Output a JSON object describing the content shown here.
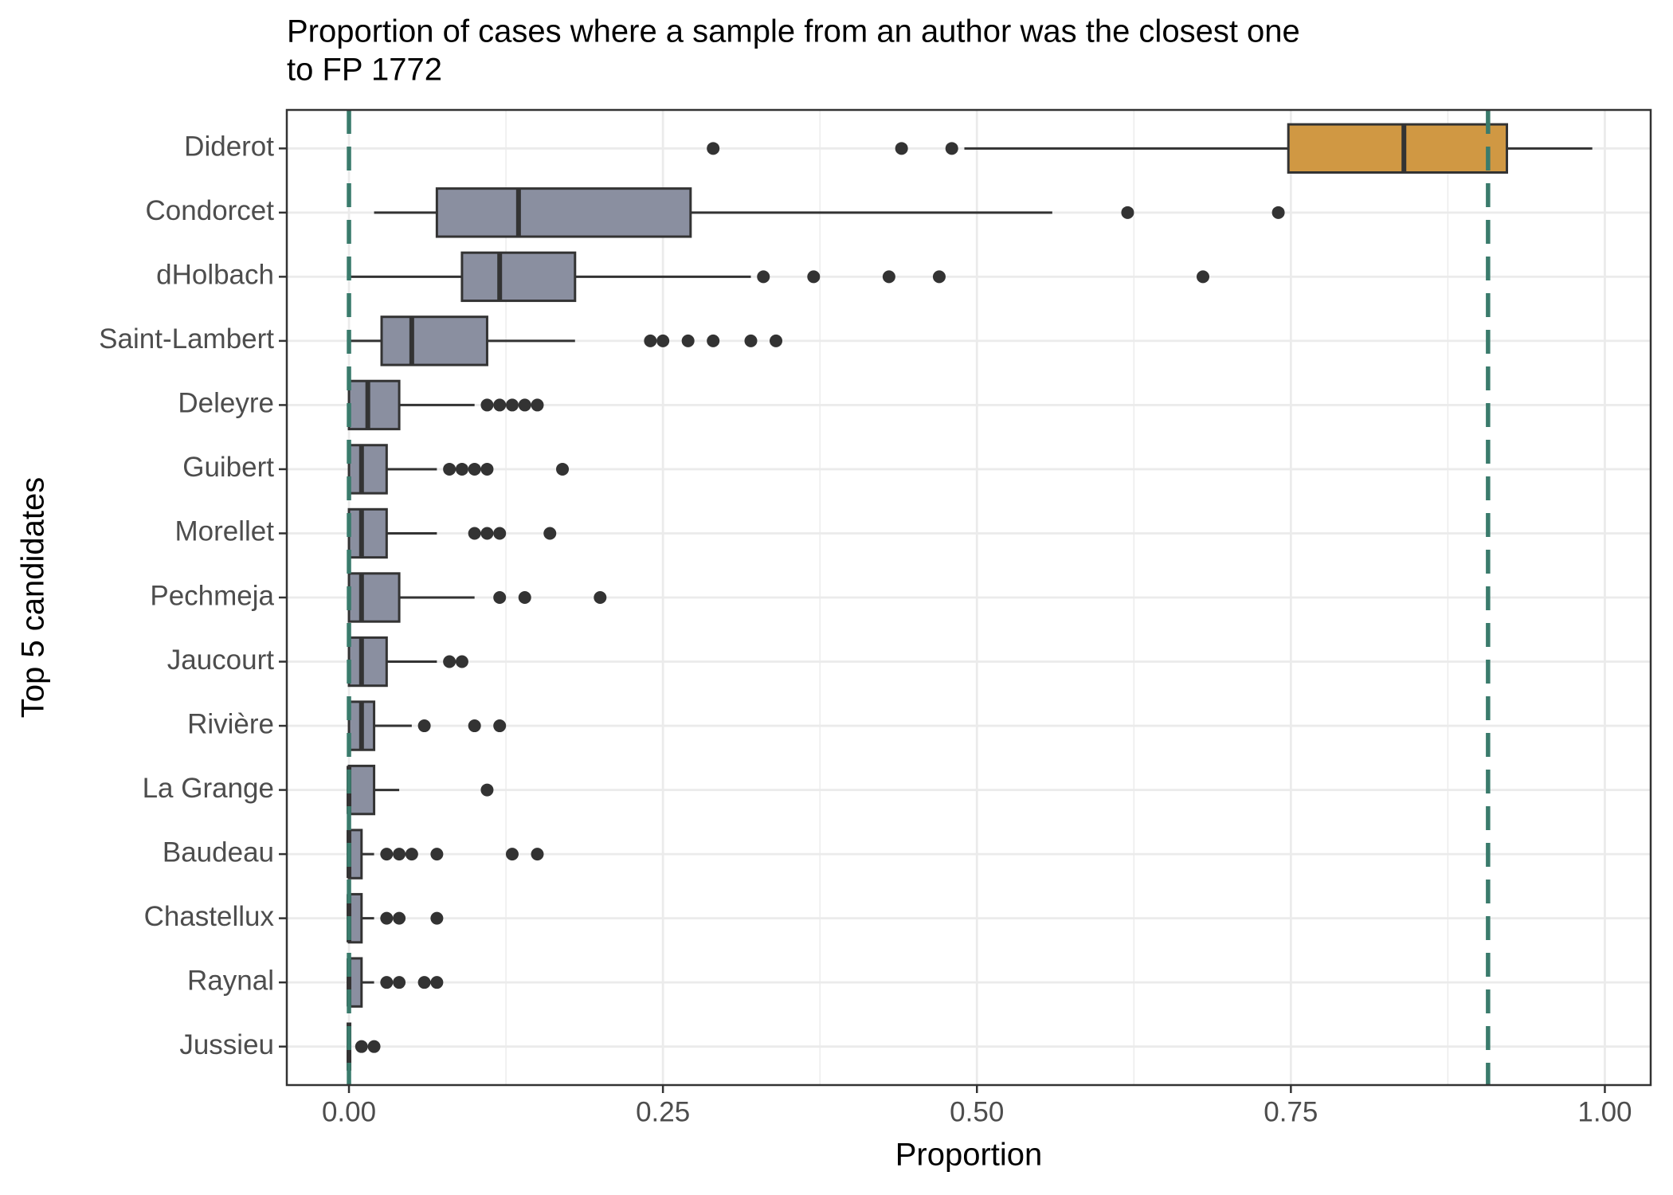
{
  "chart_data": {
    "type": "boxplot",
    "title": [
      "Proportion of cases where a sample from an author was the closest one",
      "to FP 1772"
    ],
    "x_label": "Proportion",
    "y_label": "Top 5 candidates",
    "categories": [
      "Diderot",
      "Condorcet",
      "dHolbach",
      "Saint-Lambert",
      "Deleyre",
      "Guibert",
      "Morellet",
      "Pechmeja",
      "Jaucourt",
      "Rivière",
      "La Grange",
      "Baudeau",
      "Chastellux",
      "Raynal",
      "Jussieu"
    ],
    "boxes": [
      {
        "min": 0.49,
        "q1": 0.748,
        "median": 0.84,
        "q3": 0.922,
        "max": 0.99,
        "outliers": [
          0.29,
          0.44,
          0.48
        ],
        "color": "#d09843"
      },
      {
        "min": 0.02,
        "q1": 0.07,
        "median": 0.135,
        "q3": 0.272,
        "max": 0.56,
        "outliers": [
          0.62,
          0.74
        ],
        "color": "#8a8fa0"
      },
      {
        "min": 0.0,
        "q1": 0.09,
        "median": 0.12,
        "q3": 0.18,
        "max": 0.32,
        "outliers": [
          0.33,
          0.37,
          0.43,
          0.47,
          0.68
        ],
        "color": "#8a8fa0"
      },
      {
        "min": 0.0,
        "q1": 0.026,
        "median": 0.05,
        "q3": 0.11,
        "max": 0.18,
        "outliers": [
          0.24,
          0.25,
          0.27,
          0.29,
          0.32,
          0.34
        ],
        "color": "#8a8fa0"
      },
      {
        "min": 0.0,
        "q1": 0.0,
        "median": 0.015,
        "q3": 0.04,
        "max": 0.1,
        "outliers": [
          0.11,
          0.12,
          0.13,
          0.14,
          0.15
        ],
        "color": "#8a8fa0"
      },
      {
        "min": 0.0,
        "q1": 0.0,
        "median": 0.01,
        "q3": 0.03,
        "max": 0.07,
        "outliers": [
          0.08,
          0.09,
          0.1,
          0.11,
          0.17
        ],
        "color": "#8a8fa0"
      },
      {
        "min": 0.0,
        "q1": 0.0,
        "median": 0.01,
        "q3": 0.03,
        "max": 0.07,
        "outliers": [
          0.1,
          0.11,
          0.12,
          0.16
        ],
        "color": "#8a8fa0"
      },
      {
        "min": 0.0,
        "q1": 0.0,
        "median": 0.01,
        "q3": 0.04,
        "max": 0.1,
        "outliers": [
          0.12,
          0.14,
          0.2
        ],
        "color": "#8a8fa0"
      },
      {
        "min": 0.0,
        "q1": 0.0,
        "median": 0.01,
        "q3": 0.03,
        "max": 0.07,
        "outliers": [
          0.08,
          0.09
        ],
        "color": "#8a8fa0"
      },
      {
        "min": 0.0,
        "q1": 0.0,
        "median": 0.01,
        "q3": 0.02,
        "max": 0.05,
        "outliers": [
          0.06,
          0.1,
          0.12
        ],
        "color": "#8a8fa0"
      },
      {
        "min": 0.0,
        "q1": 0.0,
        "median": 0.0,
        "q3": 0.02,
        "max": 0.04,
        "outliers": [
          0.11
        ],
        "color": "#8a8fa0"
      },
      {
        "min": 0.0,
        "q1": 0.0,
        "median": 0.0,
        "q3": 0.01,
        "max": 0.02,
        "outliers": [
          0.03,
          0.04,
          0.05,
          0.07,
          0.13,
          0.15
        ],
        "color": "#8a8fa0"
      },
      {
        "min": 0.0,
        "q1": 0.0,
        "median": 0.0,
        "q3": 0.01,
        "max": 0.02,
        "outliers": [
          0.03,
          0.04,
          0.07
        ],
        "color": "#8a8fa0"
      },
      {
        "min": 0.0,
        "q1": 0.0,
        "median": 0.0,
        "q3": 0.01,
        "max": 0.02,
        "outliers": [
          0.03,
          0.04,
          0.06,
          0.07
        ],
        "color": "#8a8fa0"
      },
      {
        "min": 0.0,
        "q1": 0.0,
        "median": 0.0,
        "q3": 0.0,
        "max": 0.0,
        "outliers": [
          0.01,
          0.02
        ],
        "color": "#8a8fa0"
      }
    ],
    "xlim": [
      -0.0495,
      1.0365
    ],
    "xticks": [
      {
        "value": 0,
        "label": "0.00"
      },
      {
        "value": 0.25,
        "label": "0.25"
      },
      {
        "value": 0.5,
        "label": "0.50"
      },
      {
        "value": 0.75,
        "label": "0.75"
      },
      {
        "value": 1,
        "label": "1.00"
      }
    ],
    "xminor": [
      0.125,
      0.375,
      0.625,
      0.875
    ],
    "vlines": [
      0,
      0.907
    ],
    "vline_color": "#3a7b6c",
    "grid": true
  }
}
